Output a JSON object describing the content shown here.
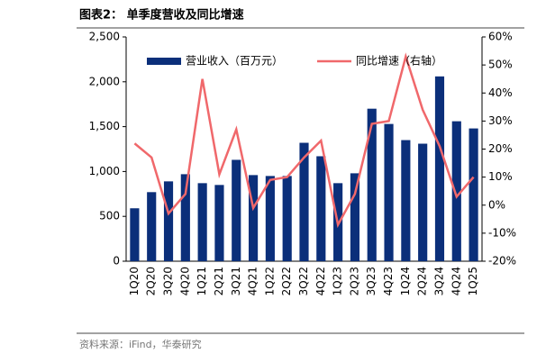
{
  "chart_data": {
    "type": "bar_line",
    "title": "图表2：  单季度营收及同比增速",
    "source": "资料来源：iFind，华泰研究",
    "categories": [
      "1Q20",
      "2Q20",
      "3Q20",
      "4Q20",
      "1Q21",
      "2Q21",
      "3Q21",
      "4Q21",
      "1Q22",
      "2Q22",
      "3Q22",
      "4Q22",
      "1Q23",
      "2Q23",
      "3Q23",
      "4Q23",
      "1Q24",
      "2Q24",
      "3Q24",
      "4Q24",
      "1Q25"
    ],
    "series": [
      {
        "name": "营业收入（百万元）",
        "type": "bar",
        "color": "#0b2f7a",
        "values": [
          590,
          770,
          890,
          970,
          870,
          850,
          1130,
          960,
          950,
          950,
          1320,
          1170,
          870,
          980,
          1700,
          1530,
          1350,
          1310,
          2060,
          1560,
          1480
        ]
      },
      {
        "name": "同比增速（右轴）",
        "type": "line",
        "axis": "y2",
        "color": "#f0686b",
        "values": [
          22,
          17,
          -3,
          4,
          45,
          11,
          27,
          -1,
          9,
          10,
          17,
          23,
          -7,
          4,
          29,
          30,
          53,
          34,
          21,
          3,
          10
        ]
      }
    ],
    "ylim": [
      0,
      2500
    ],
    "yticks": [
      0,
      500,
      {
        "value": 1000,
        "label": "1,000"
      },
      {
        "value": 1500,
        "label": "1,500"
      },
      {
        "value": 2000,
        "label": "2,000"
      },
      {
        "value": 2500,
        "label": "2,500"
      }
    ],
    "y2lim": [
      -20,
      60
    ],
    "y2ticks": [
      {
        "value": -20,
        "label": "-20%"
      },
      {
        "value": -10,
        "label": "-10%"
      },
      {
        "value": 0,
        "label": "0%"
      },
      {
        "value": 10,
        "label": "10%"
      },
      {
        "value": 20,
        "label": "20%"
      },
      {
        "value": 30,
        "label": "30%"
      },
      {
        "value": 40,
        "label": "40%"
      },
      {
        "value": 50,
        "label": "50%"
      },
      {
        "value": 60,
        "label": "60%"
      }
    ],
    "legend": "top"
  }
}
